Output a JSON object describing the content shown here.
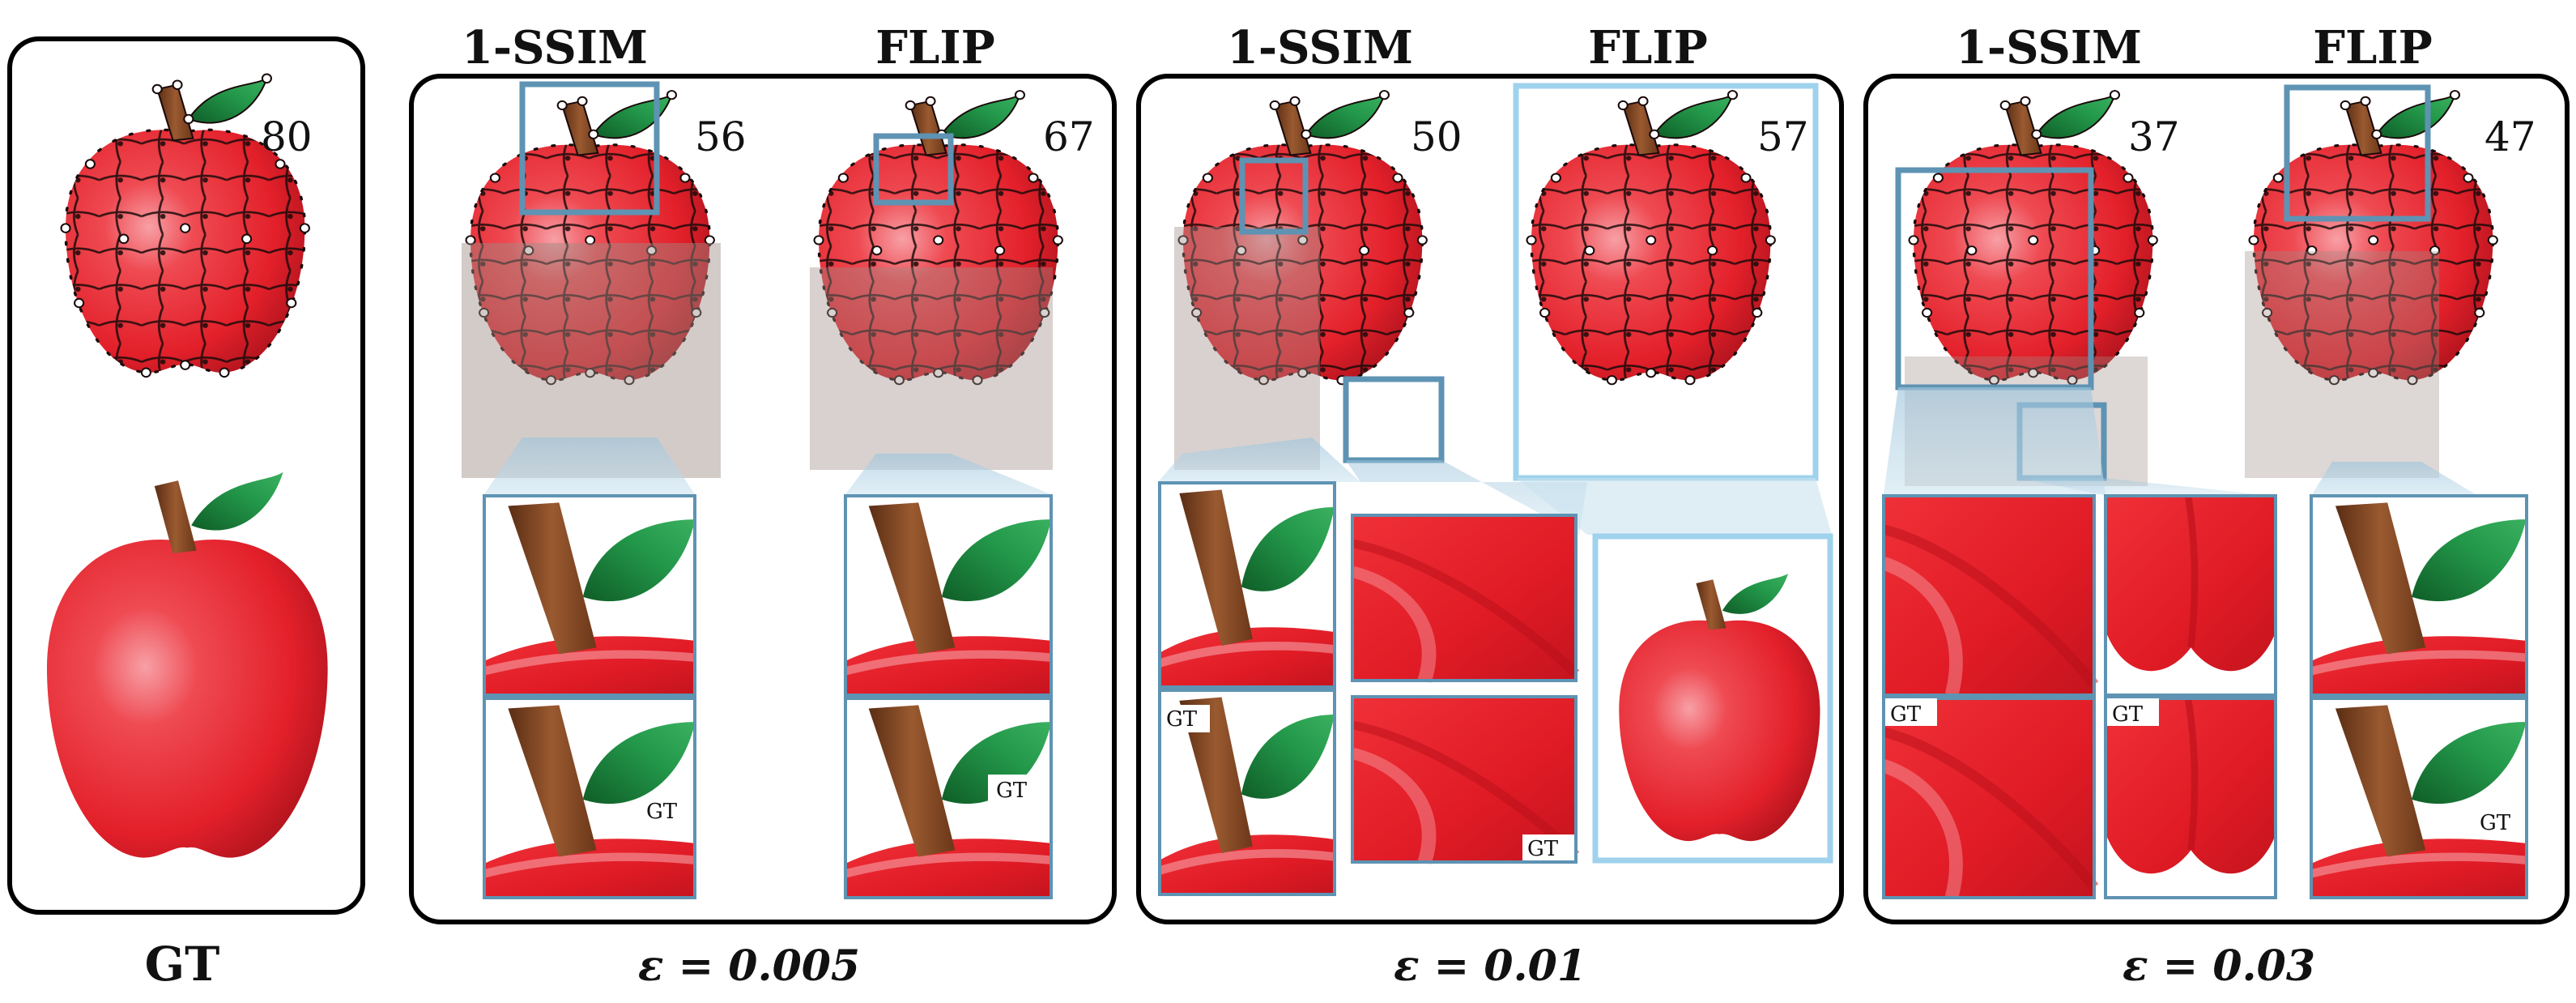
{
  "gt_panel": {
    "score": "80",
    "footer_label": "GT"
  },
  "groups": [
    {
      "epsilon_label": "ε = 0.005",
      "columns": [
        {
          "method": "1-SSIM",
          "score": "56",
          "inset_gt_label": "GT"
        },
        {
          "method": "FLIP",
          "score": "67",
          "inset_gt_label": "GT"
        }
      ]
    },
    {
      "epsilon_label": "ε = 0.01",
      "columns": [
        {
          "method": "1-SSIM",
          "score": "50",
          "inset_gt_label": "GT"
        },
        {
          "method": "FLIP",
          "score": "57",
          "inset_gt_label": "GT"
        }
      ]
    },
    {
      "epsilon_label": "ε = 0.03",
      "columns": [
        {
          "method": "1-SSIM",
          "score": "37",
          "inset_gt_label": "GT"
        },
        {
          "method": "FLIP",
          "score": "47",
          "inset_gt_label": "GT"
        }
      ]
    }
  ],
  "colors": {
    "apple_red": "#e8202a",
    "apple_dark": "#a8121c",
    "highlight": "#f7a0a6",
    "stem": "#7a4422",
    "leaf": "#1f8a3f",
    "zoom_box": "#5e93b3",
    "zoom_box_light": "#9fd2ec",
    "frame": "#000000"
  }
}
